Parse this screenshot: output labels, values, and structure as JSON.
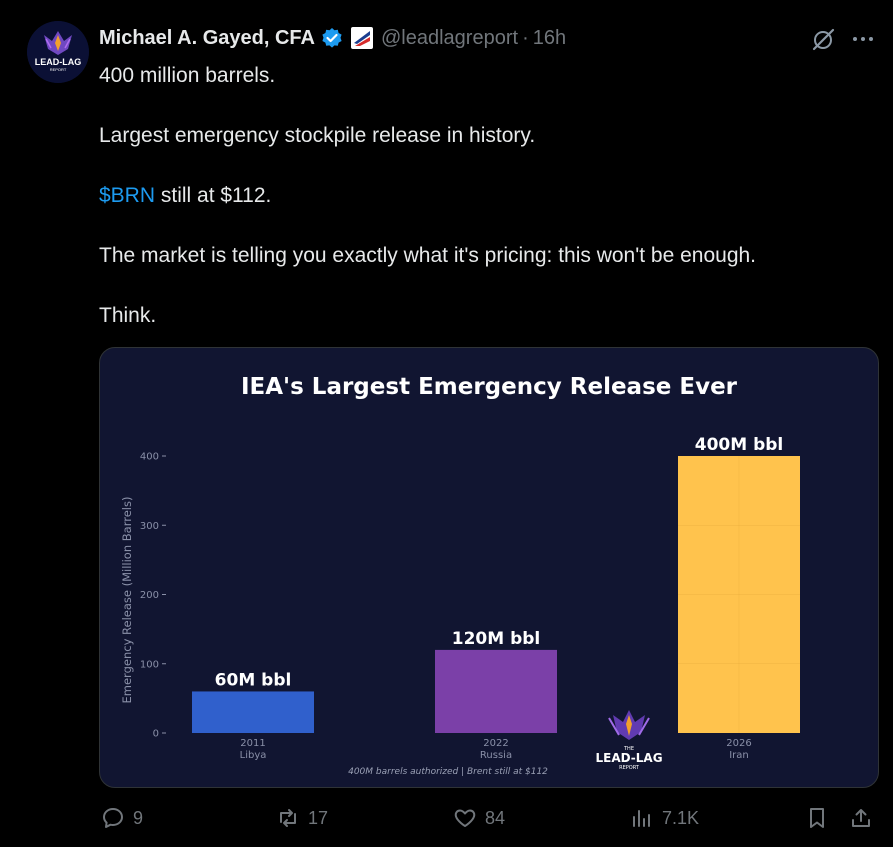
{
  "tweet": {
    "name": "Michael A. Gayed, CFA",
    "handle": "@leadlagreport",
    "separator": "·",
    "time": "16h",
    "avatar_text": "LEAD-LAG",
    "avatar_subtext": "REPORT",
    "paragraphs": [
      "400 million barrels.",
      "Largest emergency stockpile release in history.",
      null,
      "The market is telling you exactly what it's pricing: this won't be enough.",
      "Think."
    ],
    "cashtag": "$BRN",
    "cashtag_rest": " still at $112."
  },
  "icons": {
    "verified": "verified-badge-icon",
    "flag": "affiliate-flag-icon",
    "grok": "grok-icon",
    "more": "more-icon"
  },
  "actions": {
    "reply_count": "9",
    "retweet_count": "17",
    "like_count": "84",
    "views_count": "7.1K"
  },
  "colors": {
    "background": "#000000",
    "text": "#e7e9ea",
    "muted": "#71767b",
    "link": "#1d9bf0",
    "chart_bg": "#111531",
    "bar_libya": "#3060cc",
    "bar_russia": "#7b40a8",
    "bar_iran": "#ffc34d"
  },
  "chart_data": {
    "type": "bar",
    "title": "IEA's Largest Emergency Release Ever",
    "ylabel": "Emergency Release (Million Barrels)",
    "xlabel": "",
    "ylim": [
      0,
      440
    ],
    "yticks": [
      0,
      100,
      200,
      300,
      400
    ],
    "grid": false,
    "categories": [
      {
        "year": "2011",
        "country": "Libya"
      },
      {
        "year": "2022",
        "country": "Russia"
      },
      {
        "year": "2026",
        "country": "Iran"
      }
    ],
    "values": [
      60,
      120,
      400
    ],
    "data_labels": [
      "60M bbl",
      "120M bbl",
      "400M bbl"
    ],
    "footnote": "400M barrels authorized | Brent still at $112",
    "watermark_text": "LEAD-LAG",
    "watermark_small_top": "THE",
    "watermark_small_bottom": "REPORT"
  }
}
